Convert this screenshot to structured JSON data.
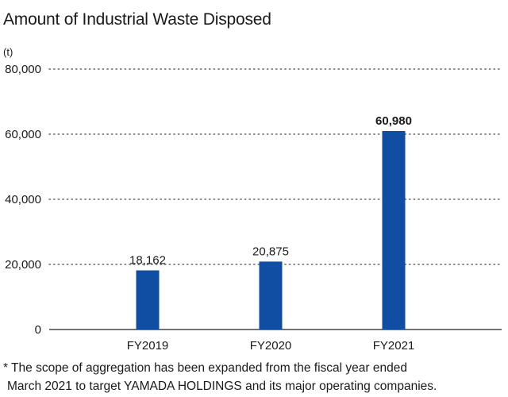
{
  "chart_data": {
    "type": "bar",
    "title": "Amount of Industrial Waste Disposed",
    "ylabel": "(t)",
    "xlabel": "",
    "categories": [
      "FY2019",
      "FY2020",
      "FY2021"
    ],
    "values": [
      18162,
      20875,
      60980
    ],
    "value_labels": [
      "18,162",
      "20,875",
      "60,980"
    ],
    "yticks": [
      0,
      20000,
      40000,
      60000,
      80000
    ],
    "ytick_labels": [
      "0",
      "20,000",
      "40,000",
      "60,000",
      "80,000"
    ],
    "ylim": [
      0,
      80000
    ],
    "bar_color": "#0f4ea3",
    "highlight_index": 2,
    "grid": true
  },
  "footnote": {
    "line1": "* The scope of aggregation has been expanded from the fiscal year ended",
    "line2": "March 2021 to target YAMADA HOLDINGS and its major operating companies."
  }
}
